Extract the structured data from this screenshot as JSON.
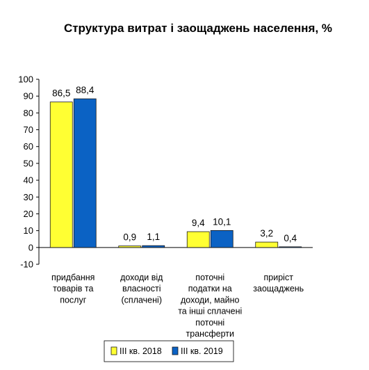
{
  "chart_data": {
    "type": "bar",
    "title": "Структура витрат і заощаджень населення, %",
    "xlabel": "",
    "ylabel": "",
    "ylim": [
      -10,
      100
    ],
    "yticks": [
      -10,
      0,
      10,
      20,
      30,
      40,
      50,
      60,
      70,
      80,
      90,
      100
    ],
    "grid": false,
    "legend_position": "bottom",
    "categories": [
      [
        "придбання",
        "товарів та",
        "послуг"
      ],
      [
        "доходи від",
        "власності",
        "(сплачені)"
      ],
      [
        "поточні",
        "податки  на",
        "доходи, майно",
        "та інші сплачені",
        "поточні",
        "трансферти"
      ],
      [
        "приріст",
        "заощаджень"
      ]
    ],
    "series": [
      {
        "name": "ІІІ кв. 2018",
        "color": "#FFFF33",
        "values": [
          86.5,
          0.9,
          9.4,
          3.2
        ],
        "labels": [
          "86,5",
          "0,9",
          "9,4",
          "3,2"
        ]
      },
      {
        "name": "ІІІ кв. 2019",
        "color": "#0B62C4",
        "values": [
          88.4,
          1.1,
          10.1,
          0.4
        ],
        "labels": [
          "88,4",
          "1,1",
          "10,1",
          "0,4"
        ]
      }
    ]
  }
}
